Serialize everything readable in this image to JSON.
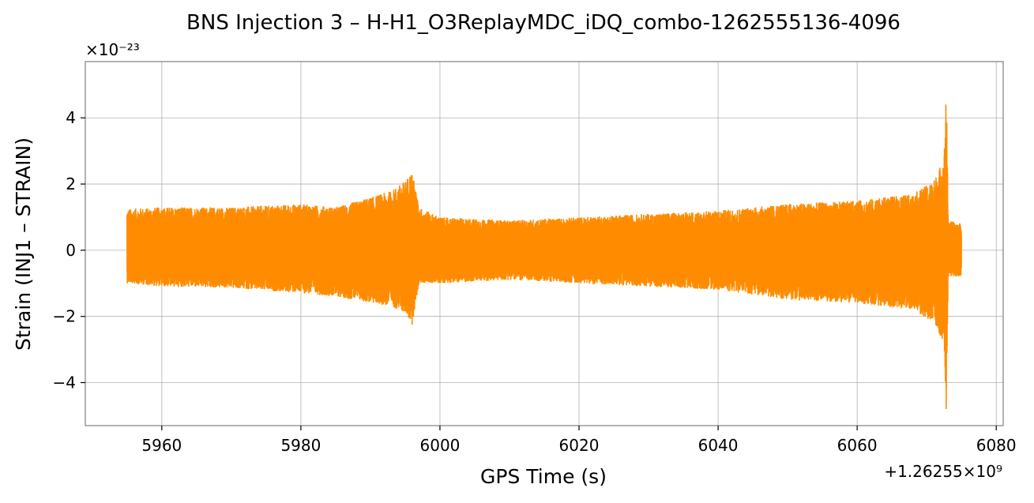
{
  "chart_data": {
    "type": "line",
    "title": "BNS Injection 3 – H-H1_O3ReplayMDC_iDQ_combo-1262555136-4096",
    "xlabel": "GPS Time (s)",
    "ylabel": "Strain (INJ1 – STRAIN)",
    "x_offset_label": "+1.26255×10⁹",
    "y_multiplier_label": "×10⁻²³",
    "xlim": [
      5949,
      6081
    ],
    "ylim": [
      -5.3,
      5.7
    ],
    "xticks": [
      5960,
      5980,
      6000,
      6020,
      6040,
      6060,
      6080
    ],
    "xtick_labels": [
      "5960",
      "5980",
      "6000",
      "6020",
      "6040",
      "6060",
      "6080"
    ],
    "yticks": [
      -4,
      -2,
      0,
      2,
      4
    ],
    "ytick_labels": [
      "−4",
      "−2",
      "0",
      "2",
      "4"
    ],
    "grid": true,
    "series": [
      {
        "color": "#ff8c00",
        "x_range": [
          5955,
          6075
        ],
        "envelope_points": [
          {
            "x": 5955,
            "upper": 1.25,
            "lower": -1.0
          },
          {
            "x": 5960,
            "upper": 1.3,
            "lower": -1.1
          },
          {
            "x": 5970,
            "upper": 1.3,
            "lower": -1.15
          },
          {
            "x": 5980,
            "upper": 1.4,
            "lower": -1.3
          },
          {
            "x": 5985,
            "upper": 1.3,
            "lower": -1.4
          },
          {
            "x": 5990,
            "upper": 1.6,
            "lower": -1.6
          },
          {
            "x": 5993,
            "upper": 1.8,
            "lower": -1.7
          },
          {
            "x": 5995,
            "upper": 2.1,
            "lower": -1.9
          },
          {
            "x": 5996,
            "upper": 2.4,
            "lower": -2.25
          },
          {
            "x": 5997,
            "upper": 1.3,
            "lower": -1.0
          },
          {
            "x": 6000,
            "upper": 1.0,
            "lower": -1.0
          },
          {
            "x": 6010,
            "upper": 0.9,
            "lower": -0.9
          },
          {
            "x": 6020,
            "upper": 1.0,
            "lower": -1.0
          },
          {
            "x": 6030,
            "upper": 1.1,
            "lower": -1.1
          },
          {
            "x": 6040,
            "upper": 1.2,
            "lower": -1.2
          },
          {
            "x": 6050,
            "upper": 1.4,
            "lower": -1.5
          },
          {
            "x": 6060,
            "upper": 1.5,
            "lower": -1.6
          },
          {
            "x": 6068,
            "upper": 1.7,
            "lower": -1.8
          },
          {
            "x": 6071,
            "upper": 2.1,
            "lower": -2.2
          },
          {
            "x": 6072.5,
            "upper": 2.8,
            "lower": -2.8
          },
          {
            "x": 6072.8,
            "upper": 5.25,
            "lower": -4.8
          },
          {
            "x": 6073.1,
            "upper": 0.9,
            "lower": -0.8
          },
          {
            "x": 6075,
            "upper": 0.8,
            "lower": -0.8
          }
        ]
      }
    ]
  }
}
